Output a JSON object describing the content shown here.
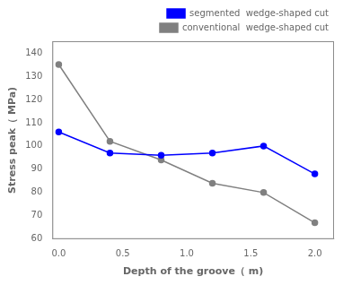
{
  "chart_data": {
    "type": "line",
    "xlabel": "Depth of the groove（ m)",
    "ylabel": "Stress peak（ MPa)",
    "x": [
      0.0,
      0.4,
      0.8,
      1.2,
      1.6,
      2.0
    ],
    "series": [
      {
        "name": "segmented  wedge-shaped cut",
        "color": "#0000ff",
        "values": [
          106,
          97,
          96,
          97,
          100,
          88
        ],
        "marker": "circle",
        "line_style": "solid"
      },
      {
        "name": "conventional  wedge-shaped cut",
        "color": "#808080",
        "values": [
          135,
          102,
          94,
          84,
          80,
          67
        ],
        "marker": "circle",
        "line_style": "solid"
      }
    ],
    "xlim": [
      -0.05,
      2.15
    ],
    "ylim": [
      60,
      145
    ],
    "xticks": [
      {
        "value": 0,
        "label": "0.0"
      },
      0.5,
      {
        "value": 1,
        "label": "1.0"
      },
      1.5,
      {
        "value": 2,
        "label": "2.0"
      }
    ],
    "yticks": [
      60,
      70,
      80,
      90,
      100,
      110,
      120,
      130,
      140
    ],
    "grid": false,
    "legend": "upper right"
  }
}
